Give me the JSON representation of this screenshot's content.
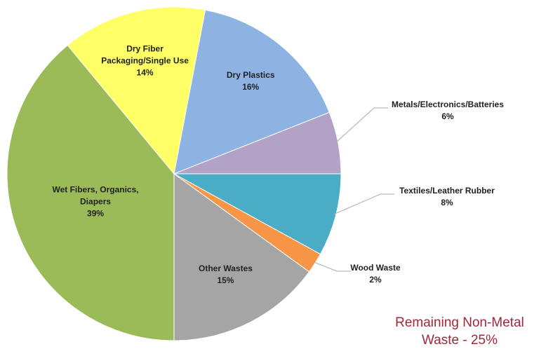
{
  "chart_data": {
    "type": "pie",
    "annotation": "Remaining Non-Metal Waste - 25%",
    "categories": [
      "Textiles/Leather Rubber",
      "Wood Waste",
      "Other Wastes",
      "Wet Fibers, Organics, Diapers",
      "Dry Fiber Packaging/Single Use",
      "Dry Plastics",
      "Metals/Electronics/Batteries"
    ],
    "values": [
      8,
      2,
      15,
      39,
      14,
      16,
      6
    ],
    "value_labels": [
      "8%",
      "2%",
      "15%",
      "39%",
      "14%",
      "16%",
      "6%"
    ],
    "colors": [
      "#4bacc6",
      "#f79646",
      "#a5a5a5",
      "#9bbb59",
      "#ffff66",
      "#8db3e2",
      "#b3a2c7"
    ]
  }
}
